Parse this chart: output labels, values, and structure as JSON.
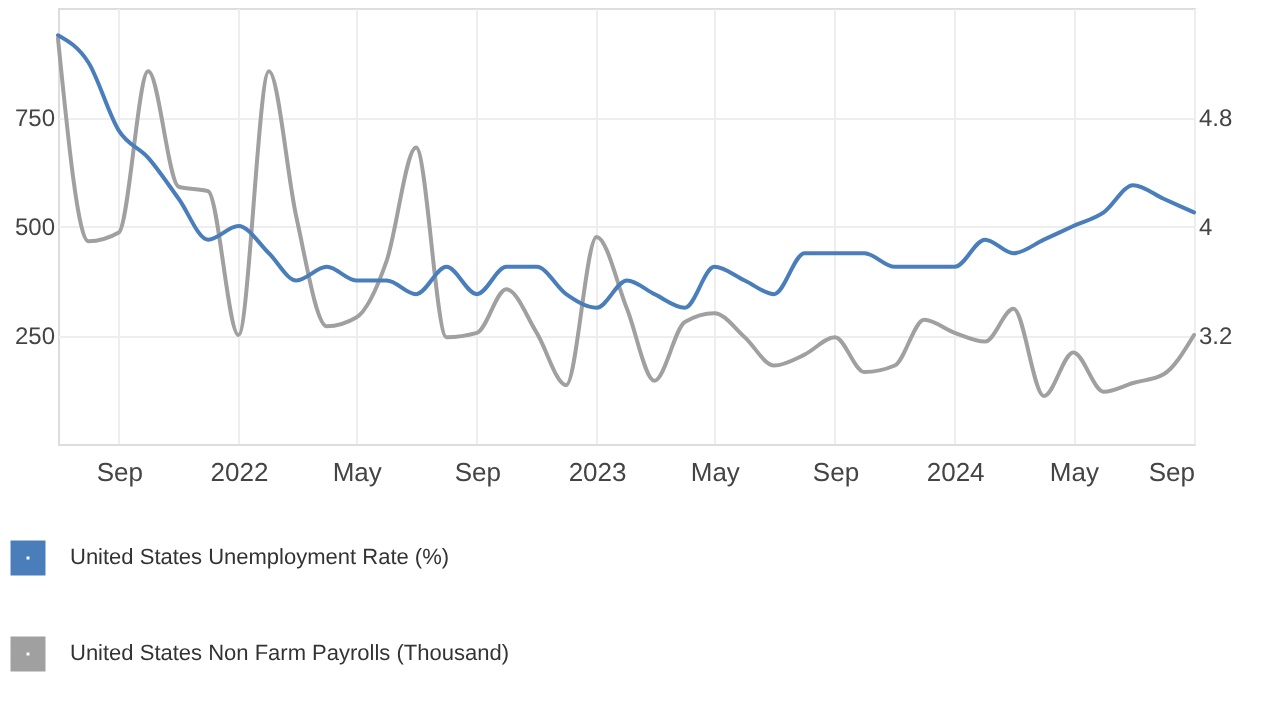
{
  "chart_data": {
    "type": "line",
    "x": [
      "2021-07",
      "2021-08",
      "2021-09",
      "2021-10",
      "2021-11",
      "2021-12",
      "2022-01",
      "2022-02",
      "2022-03",
      "2022-04",
      "2022-05",
      "2022-06",
      "2022-07",
      "2022-08",
      "2022-09",
      "2022-10",
      "2022-11",
      "2022-12",
      "2023-01",
      "2023-02",
      "2023-03",
      "2023-04",
      "2023-05",
      "2023-06",
      "2023-07",
      "2023-08",
      "2023-09",
      "2023-10",
      "2023-11",
      "2023-12",
      "2024-01",
      "2024-02",
      "2024-03",
      "2024-04",
      "2024-05",
      "2024-06",
      "2024-07",
      "2024-08",
      "2024-09"
    ],
    "series": [
      {
        "name": "United States Unemployment Rate (%)",
        "color": "#4a7ebb",
        "axis": "y2",
        "values": [
          5.4,
          5.2,
          4.7,
          4.5,
          4.2,
          3.9,
          4.0,
          3.8,
          3.6,
          3.7,
          3.6,
          3.6,
          3.5,
          3.7,
          3.5,
          3.7,
          3.7,
          3.5,
          3.4,
          3.6,
          3.5,
          3.4,
          3.7,
          3.6,
          3.5,
          3.8,
          3.8,
          3.8,
          3.7,
          3.7,
          3.7,
          3.9,
          3.8,
          3.9,
          4.0,
          4.1,
          4.3,
          4.2,
          4.1
        ]
      },
      {
        "name": "United States Non Farm Payrolls (Thousand)",
        "color": "#a0a0a0",
        "values": [
          930,
          465,
          485,
          855,
          590,
          580,
          250,
          855,
          520,
          270,
          290,
          420,
          680,
          245,
          255,
          355,
          255,
          135,
          475,
          310,
          145,
          280,
          300,
          245,
          180,
          205,
          245,
          165,
          180,
          285,
          255,
          235,
          310,
          110,
          210,
          120,
          140,
          160,
          250
        ]
      }
    ],
    "xlim": [
      "2021-07",
      "2024-09"
    ],
    "xticks": [
      {
        "value": "2021-09",
        "label": "Sep"
      },
      {
        "value": "2022-01",
        "label": "2022"
      },
      {
        "value": "2022-05",
        "label": "May"
      },
      {
        "value": "2022-09",
        "label": "Sep"
      },
      {
        "value": "2023-01",
        "label": "2023"
      },
      {
        "value": "2023-05",
        "label": "May"
      },
      {
        "value": "2023-09",
        "label": "Sep"
      },
      {
        "value": "2024-01",
        "label": "2024"
      },
      {
        "value": "2024-05",
        "label": "May"
      },
      {
        "value": "2024-09",
        "label": "Sep"
      }
    ],
    "ylim": [
      0,
      1000
    ],
    "yticks": [
      250,
      500,
      750
    ],
    "y2lim": [
      2.4,
      5.6
    ],
    "y2ticks": [
      3.2,
      4,
      4.8
    ],
    "grid": true,
    "legend": "bottom"
  }
}
